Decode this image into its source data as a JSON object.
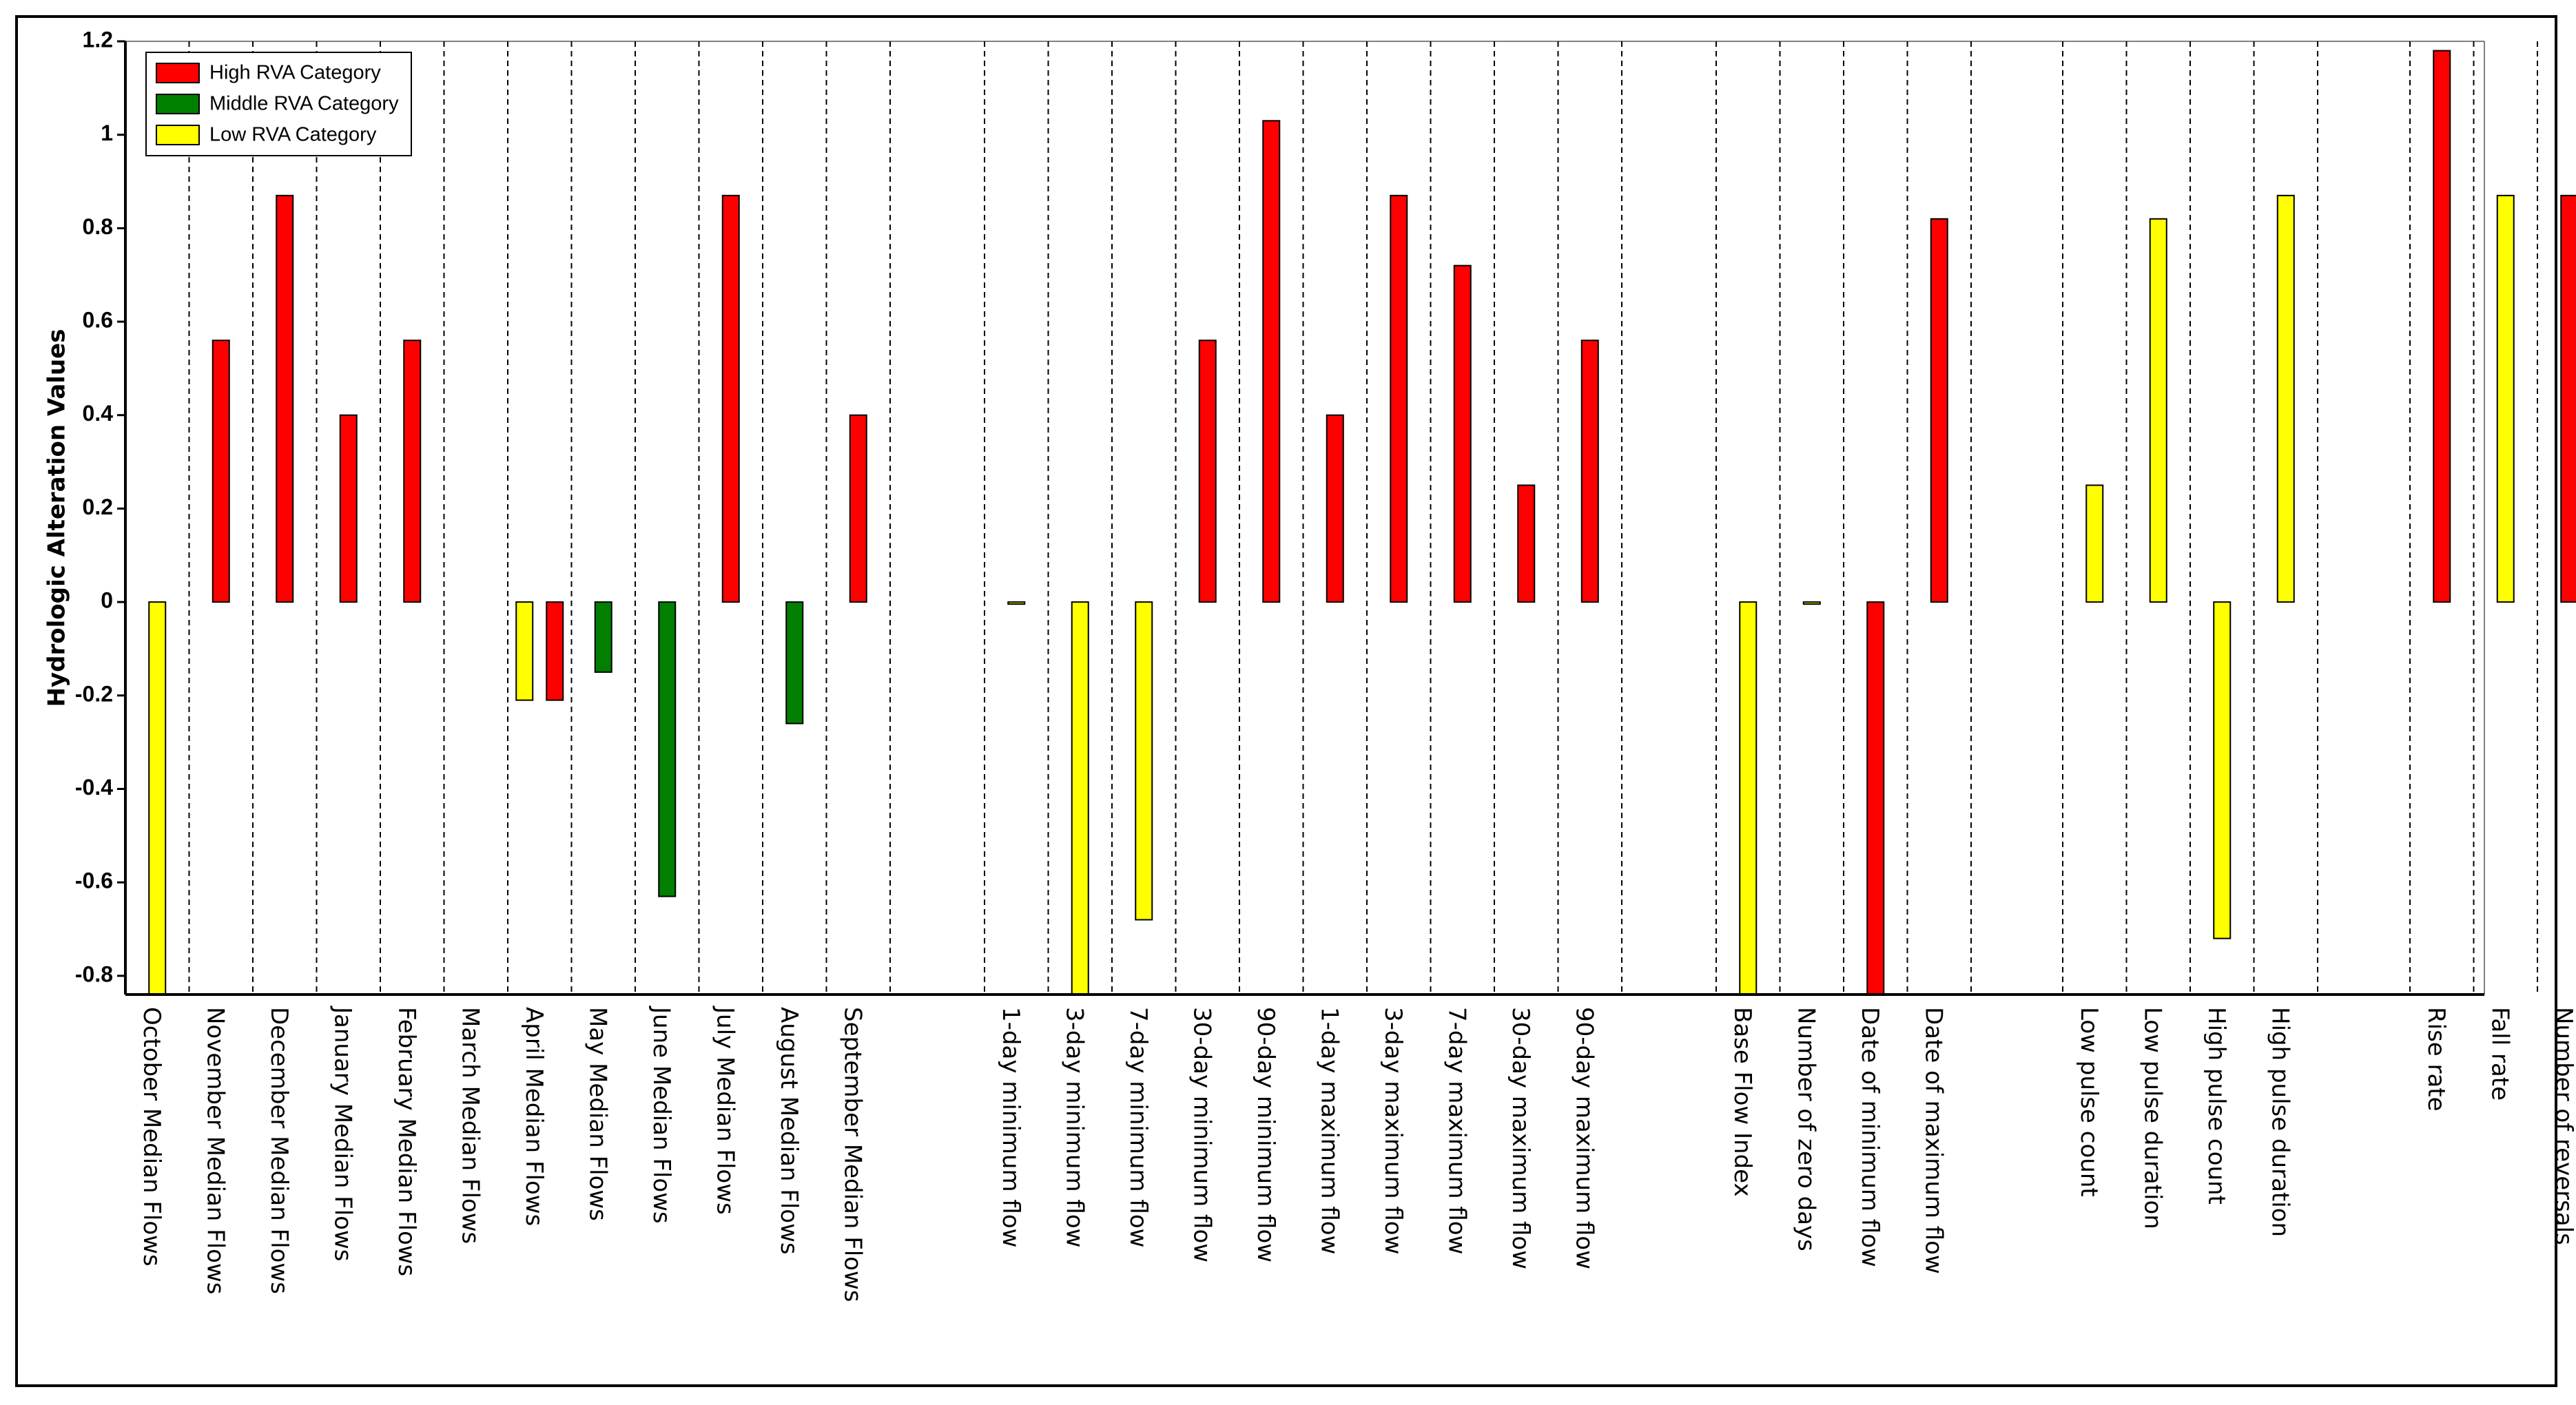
{
  "chart_data": {
    "type": "bar",
    "ylabel": "Hydrologic Alteration Values",
    "xlabel": "",
    "ylim": [
      -0.84,
      1.2
    ],
    "yticks": [
      1.2,
      1,
      0.8,
      0.6,
      0.4,
      0.2,
      0,
      -0.2,
      -0.4,
      -0.6,
      -0.8
    ],
    "grid": "vertical dashed separators",
    "legend_position": "top-left",
    "legend": [
      {
        "name": "High RVA Category",
        "color": "#ff0000"
      },
      {
        "name": "Middle RVA Category",
        "color": "#007f00"
      },
      {
        "name": "Low RVA Category",
        "color": "#ffff00"
      }
    ],
    "groups": [
      {
        "categories": [
          "October Median Flows",
          "November Median Flows",
          "December Median Flows",
          "January Median Flows",
          "February Median Flows",
          "March Median Flows",
          "April Median Flows",
          "May Median Flows",
          "June Median Flows",
          "July Median Flows",
          "August Median Flows",
          "September Median Flows"
        ],
        "bars": [
          [
            {
              "cat": "low",
              "value": -0.84
            }
          ],
          [
            {
              "cat": "high",
              "value": 0.56
            }
          ],
          [
            {
              "cat": "high",
              "value": 0.87
            }
          ],
          [
            {
              "cat": "high",
              "value": 0.4
            }
          ],
          [
            {
              "cat": "high",
              "value": 0.56
            }
          ],
          [],
          [
            {
              "cat": "low",
              "value": -0.21
            },
            {
              "cat": "high",
              "value": -0.21
            }
          ],
          [
            {
              "cat": "middle",
              "value": -0.15
            }
          ],
          [
            {
              "cat": "middle",
              "value": -0.63
            }
          ],
          [
            {
              "cat": "high",
              "value": 0.87
            }
          ],
          [
            {
              "cat": "middle",
              "value": -0.26
            }
          ],
          [
            {
              "cat": "high",
              "value": 0.4
            }
          ]
        ]
      },
      {
        "categories": [
          "1-day minimum flow",
          "3-day minimum flow",
          "7-day minimum flow",
          "30-day minimum flow",
          "90-day minimum flow",
          "1-day maximum flow",
          "3-day maximum flow",
          "7-day maximum flow",
          "30-day maximum flow",
          "90-day maximum flow"
        ],
        "bars": [
          [
            {
              "cat": "low",
              "value": 0
            }
          ],
          [
            {
              "cat": "low",
              "value": -0.84
            }
          ],
          [
            {
              "cat": "low",
              "value": -0.68
            }
          ],
          [
            {
              "cat": "high",
              "value": 0.56
            }
          ],
          [
            {
              "cat": "high",
              "value": 1.03
            }
          ],
          [
            {
              "cat": "high",
              "value": 0.4
            }
          ],
          [
            {
              "cat": "high",
              "value": 0.87
            }
          ],
          [
            {
              "cat": "high",
              "value": 0.72
            }
          ],
          [
            {
              "cat": "high",
              "value": 0.25
            }
          ],
          [
            {
              "cat": "high",
              "value": 0.56
            }
          ]
        ]
      },
      {
        "categories": [
          "Base Flow Index",
          "Number of zero days",
          "Date of minimum flow",
          "Date of maximum flow"
        ],
        "bars": [
          [
            {
              "cat": "low",
              "value": -0.84
            }
          ],
          [
            {
              "cat": "low",
              "value": 0
            }
          ],
          [
            {
              "cat": "high",
              "value": -0.84
            }
          ],
          [
            {
              "cat": "high",
              "value": 0.82
            }
          ]
        ]
      },
      {
        "categories": [
          "Low pulse count",
          "Low pulse duration",
          "High pulse count",
          "High pulse duration"
        ],
        "bars": [
          [
            {
              "cat": "low",
              "value": 0.25
            }
          ],
          [
            {
              "cat": "low",
              "value": 0.82
            }
          ],
          [
            {
              "cat": "low",
              "value": -0.72
            }
          ],
          [
            {
              "cat": "low",
              "value": 0.87
            }
          ]
        ]
      },
      {
        "categories": [
          "Rise rate",
          "Fall rate",
          "Number of reversals"
        ],
        "bars": [
          [
            {
              "cat": "high",
              "value": 1.18
            }
          ],
          [
            {
              "cat": "low",
              "value": 0.87
            }
          ],
          [
            {
              "cat": "high",
              "value": 0.87
            }
          ]
        ]
      }
    ]
  }
}
